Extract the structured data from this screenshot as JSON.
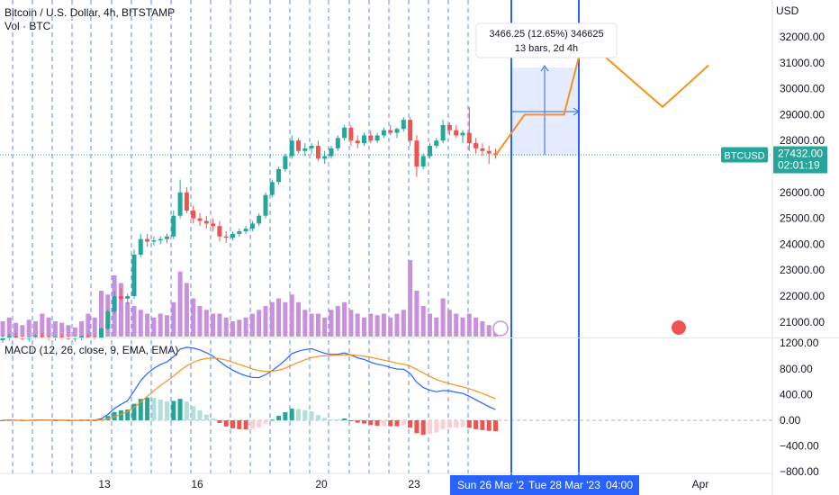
{
  "header": {
    "symbol_title": "Bitcoin / U.S. Dollar, 4h, BITSTAMP",
    "volume_label": "Vol · BTC",
    "macd_label": "MACD (12, 26, close, 9, EMA, EMA)"
  },
  "price_axis": {
    "currency": "USD",
    "ticks": [
      "32000.00",
      "31000.00",
      "30000.00",
      "29000.00",
      "28000.00",
      "26000.00",
      "25000.00",
      "24000.00",
      "23000.00",
      "22000.00",
      "21000.00"
    ],
    "ticks_values": [
      32000,
      31000,
      30000,
      29000,
      28000,
      26000,
      25000,
      24000,
      23000,
      22000,
      21000
    ],
    "current_symbol": "BTCUSD",
    "current_price": "27432.00",
    "countdown": "02:01:19",
    "current_price_value": 27432
  },
  "macd_axis": {
    "ticks": [
      "1200.00",
      "800.00",
      "400.00",
      "0.00",
      "−400.00",
      "−800.00"
    ],
    "ticks_values": [
      1200,
      800,
      400,
      0,
      -400,
      -800
    ]
  },
  "time_axis": {
    "labels": [
      "13",
      "16",
      "20",
      "23",
      "Apr"
    ],
    "range_start": "Sun 26 Mar '2",
    "range_end": "Tue 28 Mar '23",
    "range_end_time": "04:00"
  },
  "measure_tooltip": {
    "line1": "3466.25 (12.65%) 346625",
    "line2": "13 bars, 2d 4h"
  },
  "colors": {
    "up": "#26a69a",
    "down": "#ef5350",
    "vol": "#c990dd",
    "macd": "#2962ff",
    "signal": "#f7931a",
    "selection": "#2962ff",
    "hist_up_strong": "#26a69a",
    "hist_up_weak": "#b2dfdb",
    "hist_down_strong": "#ef5350",
    "hist_down_weak": "#ffcdd2"
  },
  "chart_data": {
    "type": "candlestick",
    "timeframe": "4h",
    "candles": [
      [
        20300,
        20500,
        20200,
        20400
      ],
      [
        20400,
        20550,
        20300,
        20450
      ],
      [
        20450,
        20600,
        20350,
        20400
      ],
      [
        20400,
        20480,
        20300,
        20350
      ],
      [
        20350,
        20450,
        20250,
        20420
      ],
      [
        20420,
        20520,
        20350,
        20460
      ],
      [
        20460,
        20580,
        20380,
        20420
      ],
      [
        20420,
        20500,
        20320,
        20380
      ],
      [
        20380,
        20460,
        20280,
        20430
      ],
      [
        20430,
        20520,
        20340,
        20400
      ],
      [
        20400,
        20480,
        20310,
        20350
      ],
      [
        20350,
        20420,
        20250,
        20390
      ],
      [
        20390,
        20470,
        20300,
        20450
      ],
      [
        20450,
        20560,
        20380,
        20420
      ],
      [
        20420,
        20500,
        20330,
        20380
      ],
      [
        20380,
        20800,
        20350,
        20750
      ],
      [
        20750,
        21500,
        20700,
        21400
      ],
      [
        21400,
        22200,
        21300,
        22000
      ],
      [
        22000,
        22300,
        21800,
        21900
      ],
      [
        21900,
        22100,
        21700,
        22000
      ],
      [
        22000,
        23800,
        21900,
        23600
      ],
      [
        23600,
        24400,
        23500,
        24200
      ],
      [
        24200,
        24400,
        23900,
        24100
      ],
      [
        24100,
        24300,
        23950,
        24150
      ],
      [
        24150,
        24300,
        24000,
        24200
      ],
      [
        24200,
        24400,
        24050,
        24300
      ],
      [
        24300,
        25300,
        24200,
        25100
      ],
      [
        25100,
        26500,
        25000,
        26000
      ],
      [
        26000,
        26200,
        25200,
        25300
      ],
      [
        25300,
        25500,
        24800,
        25000
      ],
      [
        25000,
        25200,
        24700,
        24900
      ],
      [
        24900,
        25100,
        24600,
        24800
      ],
      [
        24800,
        25000,
        24500,
        24700
      ],
      [
        24700,
        24900,
        24100,
        24300
      ],
      [
        24300,
        24500,
        24050,
        24250
      ],
      [
        24250,
        24500,
        24150,
        24400
      ],
      [
        24400,
        24600,
        24300,
        24500
      ],
      [
        24500,
        24700,
        24400,
        24600
      ],
      [
        24600,
        24900,
        24500,
        24800
      ],
      [
        24800,
        25200,
        24700,
        25100
      ],
      [
        25100,
        26000,
        25000,
        25900
      ],
      [
        25900,
        26500,
        25800,
        26400
      ],
      [
        26400,
        27000,
        26300,
        26900
      ],
      [
        26900,
        27500,
        26800,
        27400
      ],
      [
        27400,
        28200,
        27300,
        28000
      ],
      [
        28000,
        28100,
        27500,
        27600
      ],
      [
        27600,
        27900,
        27400,
        27700
      ],
      [
        27700,
        27900,
        27500,
        27800
      ],
      [
        27800,
        28000,
        27200,
        27300
      ],
      [
        27300,
        27600,
        27100,
        27400
      ],
      [
        27400,
        27800,
        27300,
        27700
      ],
      [
        27700,
        28200,
        27600,
        28100
      ],
      [
        28100,
        28600,
        28000,
        28500
      ],
      [
        28500,
        28600,
        27800,
        28000
      ],
      [
        28000,
        28200,
        27700,
        27900
      ],
      [
        27900,
        28300,
        27800,
        28200
      ],
      [
        28200,
        28400,
        27900,
        28000
      ],
      [
        28000,
        28300,
        27900,
        28200
      ],
      [
        28200,
        28500,
        28100,
        28400
      ],
      [
        28400,
        28600,
        28200,
        28300
      ],
      [
        28300,
        28500,
        28100,
        28450
      ],
      [
        28450,
        28900,
        28350,
        28800
      ],
      [
        28800,
        28900,
        27800,
        28000
      ],
      [
        28000,
        28200,
        26600,
        27000
      ],
      [
        27000,
        27500,
        26900,
        27400
      ],
      [
        27400,
        27900,
        27300,
        27800
      ],
      [
        27800,
        28100,
        27700,
        28000
      ],
      [
        28000,
        28800,
        27900,
        28600
      ],
      [
        28600,
        28700,
        28200,
        28400
      ],
      [
        28400,
        28600,
        28100,
        28200
      ],
      [
        28200,
        28400,
        27900,
        28300
      ],
      [
        28300,
        29300,
        27600,
        27900
      ],
      [
        27900,
        28100,
        27500,
        27700
      ],
      [
        27700,
        27900,
        27400,
        27600
      ],
      [
        27600,
        27800,
        27100,
        27500
      ],
      [
        27500,
        27700,
        27300,
        27450
      ]
    ],
    "volume_relative": [
      0.2,
      0.25,
      0.18,
      0.15,
      0.22,
      0.2,
      0.3,
      0.25,
      0.2,
      0.18,
      0.15,
      0.12,
      0.2,
      0.3,
      0.25,
      0.6,
      0.55,
      0.8,
      0.7,
      0.45,
      0.4,
      0.35,
      0.3,
      0.25,
      0.3,
      0.28,
      0.45,
      0.85,
      0.7,
      0.5,
      0.4,
      0.35,
      0.3,
      0.3,
      0.25,
      0.2,
      0.22,
      0.25,
      0.3,
      0.35,
      0.4,
      0.45,
      0.5,
      0.45,
      0.55,
      0.45,
      0.35,
      0.3,
      0.3,
      0.25,
      0.35,
      0.4,
      0.45,
      0.35,
      0.3,
      0.25,
      0.3,
      0.28,
      0.3,
      0.25,
      0.3,
      0.35,
      1.0,
      0.6,
      0.4,
      0.3,
      0.25,
      0.5,
      0.35,
      0.3,
      0.25,
      0.3,
      0.25,
      0.2,
      0.15,
      0.12
    ],
    "projection": [
      {
        "x_bar": 75,
        "y": 27432
      },
      {
        "x_bar": 79,
        "y": 29000
      },
      {
        "x_bar": 85,
        "y": 29000
      },
      {
        "x_bar": 88,
        "y": 31950
      },
      {
        "x_bar": 100,
        "y": 29300
      },
      {
        "x_bar": 107,
        "y": 30900
      }
    ],
    "measure": {
      "from_bar": 75,
      "to_bar": 88,
      "from_price": 27432,
      "to_price": 30898,
      "change": "3466.25 (12.65%) 346625",
      "bars": "13 bars, 2d 4h"
    },
    "macd_ranges": {
      "price_min": 20400,
      "price_max": 32600,
      "macd_min": -900,
      "macd_max": 1300
    }
  }
}
